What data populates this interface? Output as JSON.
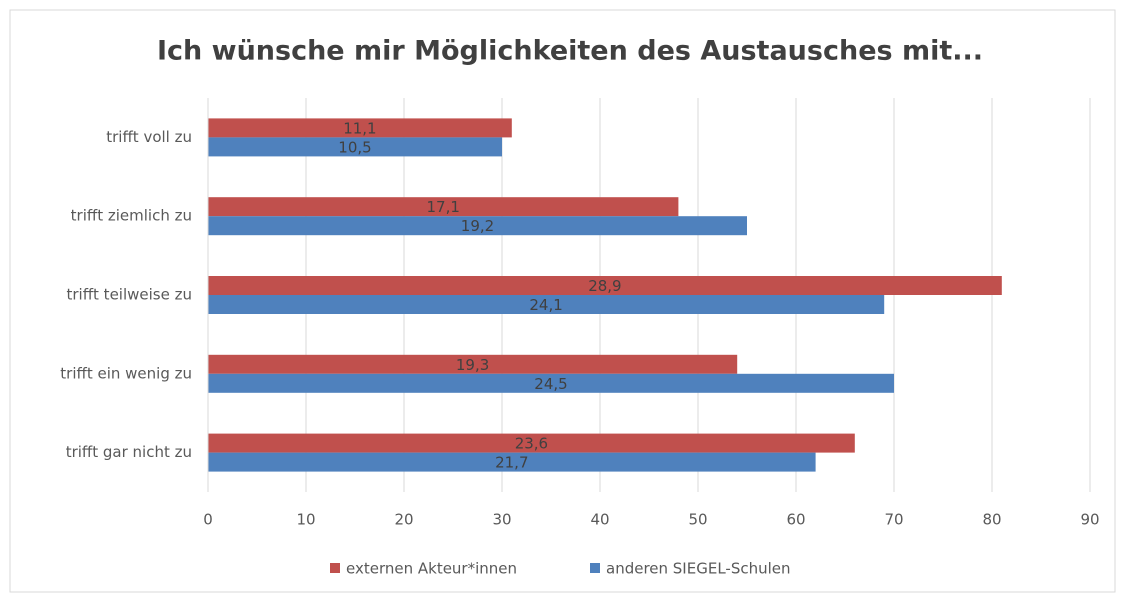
{
  "chart_data": {
    "type": "hbar",
    "title": "Ich wünsche mir Möglichkeiten des Austausches mit...",
    "categories": [
      "trifft voll zu",
      "trifft ziemlich zu",
      "trifft teilweise zu",
      "trifft ein wenig zu",
      "trifft gar nicht zu"
    ],
    "series": [
      {
        "name": "externen Akteur*innen",
        "color": "#c0504d",
        "values": [
          31,
          48,
          81,
          54,
          66
        ],
        "labels": [
          "11,1",
          "17,1",
          "28,9",
          "19,3",
          "23,6"
        ]
      },
      {
        "name": "anderen SIEGEL-Schulen",
        "color": "#4f81bd",
        "values": [
          30,
          55,
          69,
          70,
          62
        ],
        "labels": [
          "10,5",
          "19,2",
          "24,1",
          "24,5",
          "21,7"
        ]
      }
    ],
    "xlim": [
      0,
      90
    ],
    "xticks": [
      0,
      10,
      20,
      30,
      40,
      50,
      60,
      70,
      80,
      90
    ],
    "grid": true
  }
}
